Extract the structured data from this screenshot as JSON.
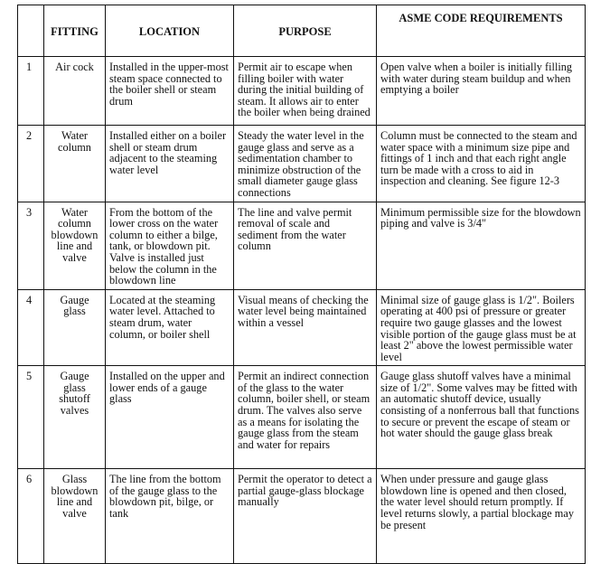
{
  "headers": [
    "",
    "FITTING",
    "LOCATION",
    "PURPOSE",
    "ASME CODE REQUIREMENTS"
  ],
  "rows": [
    {
      "num": "1",
      "fitting": "Air cock",
      "location": "Installed in the upper-most steam space connected to the boiler shell or steam drum",
      "purpose": "Permit air to escape when filling boiler with water during the initial building of steam. It allows air to enter the boiler when being drained",
      "asme": "Open valve when a boiler is initially filling with water during steam buildup and when emptying a boiler"
    },
    {
      "num": "2",
      "fitting": "Water column",
      "location": "Installed either on a boiler shell or steam drum adjacent to the steaming water level",
      "purpose": "Steady the water level in the gauge glass and serve as a sedimentation chamber to minimize obstruction of the small diameter gauge glass connections",
      "asme": "Column must be connected to the steam and water space with a minimum size pipe and fittings of 1 inch and that each right angle turn be made with a cross to aid in inspection and cleaning. See figure 12-3"
    },
    {
      "num": "3",
      "fitting": "Water column blowdown line and valve",
      "location": "From the bottom of the lower cross on the water column to either a bilge, tank, or blowdown pit. Valve is installed just below the column in the blowdown line",
      "purpose": "The line and valve permit removal of scale and sediment from the water column",
      "asme": "Minimum permissible size for the blowdown piping and valve is 3/4\""
    },
    {
      "num": "4",
      "fitting": "Gauge glass",
      "location": "Located at the steaming water level. Attached to steam drum, water column, or boiler shell",
      "purpose": "Visual means of checking the water level being maintained within a vessel",
      "asme": "Minimal size of gauge glass is 1/2\". Boilers operating at 400 psi of pressure or greater require two gauge glasses and the lowest visible portion of the gauge glass must be at least 2\" above the lowest permissible water level"
    },
    {
      "num": "5",
      "fitting": "Gauge glass shutoff valves",
      "location": "Installed on the upper and lower ends of a gauge glass",
      "purpose": "Permit an indirect connection of the glass to the water column, boiler shell, or steam drum. The valves also serve as a means for isolating the gauge glass from the steam and water for repairs",
      "asme": "Gauge glass shutoff valves have a minimal size of 1/2\". Some valves may be fitted with an automatic shutoff device, usually consisting of a nonferrous ball that functions to secure or prevent the escape of steam or hot water should the gauge glass break"
    },
    {
      "num": "6",
      "fitting": "Glass blowdown line and valve",
      "location": "The line from the bottom of the gauge glass to the blowdown pit, bilge, or tank",
      "purpose": "Permit the operator to detect a partial gauge-glass blockage manually",
      "asme": "When under pressure and gauge glass blowdown line is opened and then closed, the water level should return promptly. If level returns slowly, a partial blockage may be present"
    }
  ]
}
